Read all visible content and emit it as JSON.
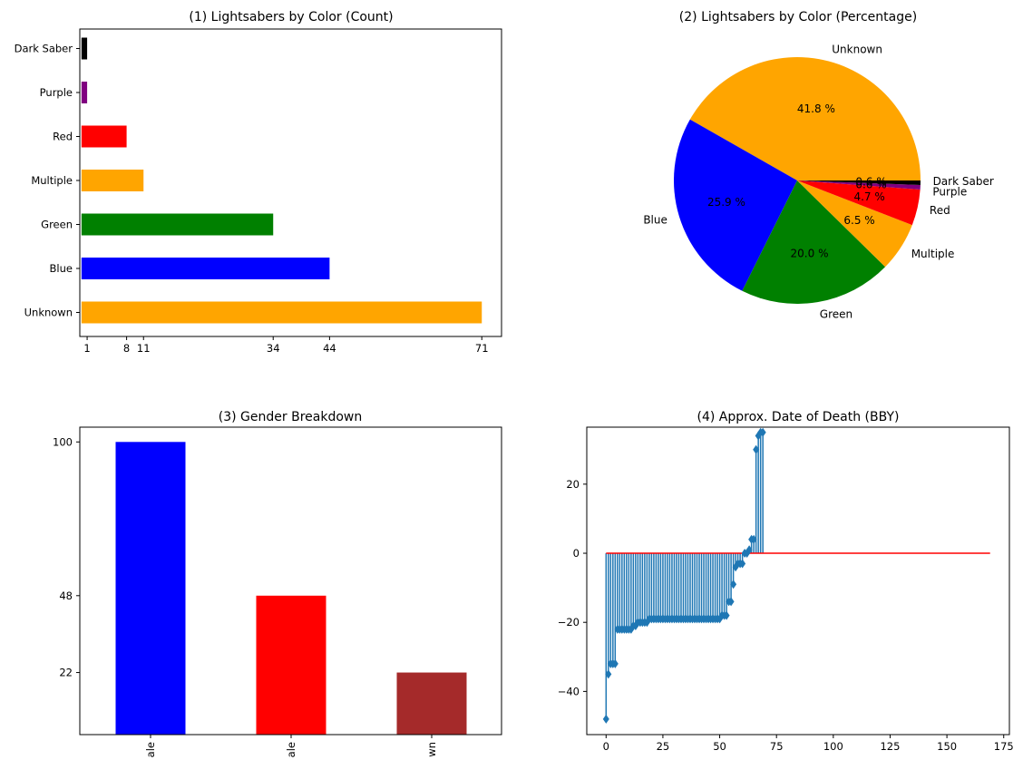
{
  "chart_data": [
    {
      "type": "bar",
      "orientation": "horizontal",
      "title": "(1) Lightsabers by Color (Count)",
      "categories": [
        "Unknown",
        "Blue",
        "Green",
        "Multiple",
        "Red",
        "Purple",
        "Dark Saber"
      ],
      "values": [
        71,
        44,
        34,
        11,
        8,
        1,
        1
      ],
      "colors": [
        "#FFA500",
        "#0000FF",
        "#008000",
        "#FFA500",
        "#FF0000",
        "#800080",
        "#000000"
      ],
      "xticks": [
        1,
        8,
        11,
        34,
        44,
        71
      ],
      "xlim": [
        -0.3,
        74.5
      ],
      "grid": false
    },
    {
      "type": "pie",
      "title": "(2) Lightsabers by Color (Percentage)",
      "labels": [
        "Unknown",
        "Blue",
        "Green",
        "Multiple",
        "Red",
        "Purple",
        "Dark Saber"
      ],
      "values": [
        71,
        44,
        34,
        11,
        8,
        1,
        1
      ],
      "pct_labels": [
        "41.8 %",
        "25.9 %",
        "20.0 %",
        "6.5 %",
        "4.7 %",
        "0.6 %",
        "0.6 %"
      ],
      "colors": [
        "#FFA500",
        "#0000FF",
        "#008000",
        "#FFA500",
        "#FF0000",
        "#800080",
        "#000000"
      ]
    },
    {
      "type": "bar",
      "title": "(3) Gender Breakdown",
      "categories": [
        "Male",
        "Female",
        "Unknown"
      ],
      "category_labels_visible": [
        "ale",
        "ale",
        "wn"
      ],
      "values": [
        100,
        48,
        22
      ],
      "colors": [
        "#0000FF",
        "#FF0000",
        "#A52A2A"
      ],
      "yticks": [
        22,
        48,
        100
      ],
      "ylim": [
        1,
        105
      ],
      "grid": false
    },
    {
      "type": "stem",
      "title": "(4) Approx. Date of Death (BBY)",
      "baseline": 0,
      "baseline_color": "#FF0000",
      "stem_color": "#1F77B4",
      "marker": "diamond",
      "xlim": [
        -8.5,
        177.5
      ],
      "ylim": [
        -52.5,
        36.5
      ],
      "xticks": [
        0,
        25,
        50,
        75,
        100,
        125,
        150,
        175
      ],
      "yticks": [
        -40,
        -20,
        0,
        20
      ],
      "baseline_x_end": 169,
      "x": [
        0,
        1,
        2,
        3,
        4,
        5,
        6,
        7,
        8,
        9,
        10,
        11,
        12,
        13,
        14,
        15,
        16,
        17,
        18,
        19,
        20,
        21,
        22,
        23,
        24,
        25,
        26,
        27,
        28,
        29,
        30,
        31,
        32,
        33,
        34,
        35,
        36,
        37,
        38,
        39,
        40,
        41,
        42,
        43,
        44,
        45,
        46,
        47,
        48,
        49,
        50,
        51,
        52,
        53,
        54,
        55,
        56,
        57,
        58,
        59,
        60,
        61,
        62,
        63,
        64,
        65,
        66,
        67,
        68,
        69
      ],
      "y": [
        -48,
        -35,
        -32,
        -32,
        -32,
        -22,
        -22,
        -22,
        -22,
        -22,
        -22,
        -22,
        -21,
        -21,
        -20,
        -20,
        -20,
        -20,
        -20,
        -19,
        -19,
        -19,
        -19,
        -19,
        -19,
        -19,
        -19,
        -19,
        -19,
        -19,
        -19,
        -19,
        -19,
        -19,
        -19,
        -19,
        -19,
        -19,
        -19,
        -19,
        -19,
        -19,
        -19,
        -19,
        -19,
        -19,
        -19,
        -19,
        -19,
        -19,
        -19,
        -18,
        -18,
        -18,
        -14,
        -14,
        -9,
        -4,
        -3,
        -3,
        -3,
        0,
        0,
        1,
        4,
        4,
        30,
        34,
        35,
        35
      ]
    }
  ]
}
